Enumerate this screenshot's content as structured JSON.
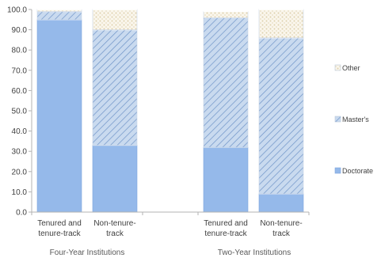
{
  "chart_data": {
    "type": "bar",
    "stacked": true,
    "ylim": [
      0,
      100
    ],
    "yticks": [
      "0.0",
      "10.0",
      "20.0",
      "30.0",
      "40.0",
      "50.0",
      "60.0",
      "70.0",
      "80.0",
      "90.0",
      "100.0"
    ],
    "grid": false,
    "legend_position": "right",
    "groups": [
      {
        "label": "Four-Year Institutions",
        "categories": [
          {
            "line1": "Tenured and",
            "line2": "tenure-track"
          },
          {
            "line1": "Non-tenure-",
            "line2": "track"
          }
        ]
      },
      {
        "label": "Two-Year Institutions",
        "categories": [
          {
            "line1": "Tenured and",
            "line2": "tenure-track"
          },
          {
            "line1": "Non-tenure-",
            "line2": "track"
          }
        ]
      }
    ],
    "series": [
      {
        "name": "Doctorate",
        "values": [
          95,
          33,
          32,
          9
        ]
      },
      {
        "name": "Master's",
        "values": [
          4,
          57,
          64,
          77
        ]
      },
      {
        "name": "Other",
        "values": [
          1,
          10,
          3,
          14
        ]
      }
    ],
    "colors": {
      "Doctorate": "#95b9ea",
      "Doctorate_edge": "#7fa6de",
      "Master's": "#b7cde9",
      "Master's_hatch": "#6f94c8",
      "Other": "#f2ead6",
      "Other_dot": "#ddd0ad",
      "axis": "#b3b3b3"
    }
  }
}
